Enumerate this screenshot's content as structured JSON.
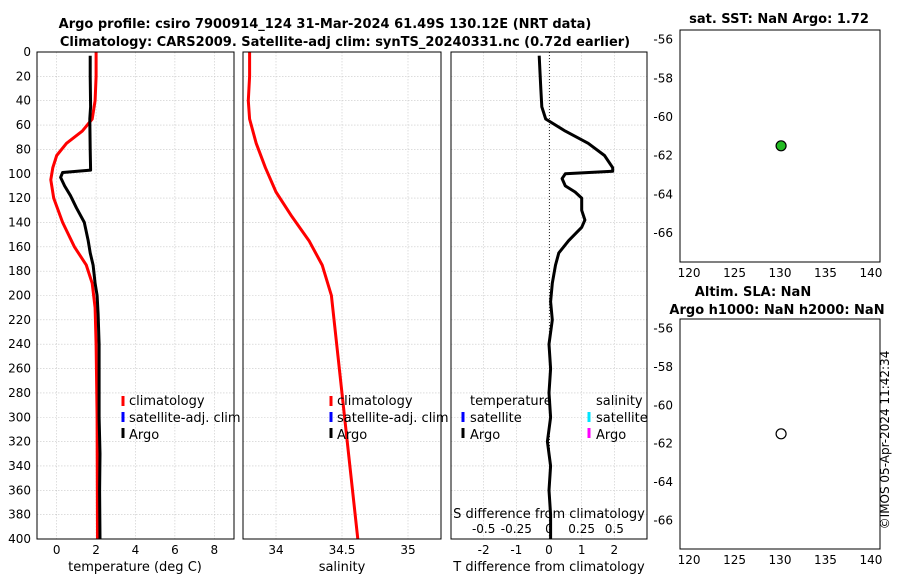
{
  "header": {
    "title_line1": "Argo profile: csiro 7900914_124 31-Mar-2024 61.49S 130.12E (NRT data)",
    "title_line2": "Climatology: CARS2009. Satellite-adj clim: synTS_20240331.nc (0.72d earlier)",
    "watermark": "©IMOS 05-Apr-2024 11:42:34"
  },
  "colors": {
    "climatology": "#ff0000",
    "satellite_adj_clim": "#0000ff",
    "argo": "#000000",
    "sal_satellite": "#00e5ff",
    "sal_argo": "#ff00ff",
    "sst_marker": "#22bb22"
  },
  "chart_data": [
    {
      "type": "line",
      "id": "temperature",
      "xlabel": "temperature (deg C)",
      "xlim": [
        -1,
        9
      ],
      "xticks": [
        0,
        2,
        4,
        6,
        8
      ],
      "xtick_labels": [
        "0",
        "2",
        "4",
        "6",
        "8"
      ],
      "ylim": [
        0,
        400
      ],
      "yticks": [
        0,
        20,
        40,
        60,
        80,
        100,
        120,
        140,
        160,
        180,
        200,
        220,
        240,
        260,
        280,
        300,
        320,
        340,
        360,
        380,
        400
      ],
      "ytick_labels": [
        "0",
        "20",
        "40",
        "60",
        "80",
        "100",
        "120",
        "140",
        "160",
        "180",
        "200",
        "220",
        "240",
        "260",
        "280",
        "300",
        "320",
        "340",
        "360",
        "380",
        "400"
      ],
      "y_reversed": true,
      "legend": [
        "climatology",
        "satellite-adj. clim",
        "Argo"
      ],
      "series": [
        {
          "name": "climatology",
          "color": "#ff0000",
          "points": [
            [
              2.0,
              0
            ],
            [
              2.0,
              20
            ],
            [
              1.95,
              40
            ],
            [
              1.8,
              55
            ],
            [
              1.3,
              65
            ],
            [
              0.5,
              75
            ],
            [
              0.0,
              85
            ],
            [
              -0.2,
              95
            ],
            [
              -0.3,
              105
            ],
            [
              -0.15,
              120
            ],
            [
              0.3,
              140
            ],
            [
              0.9,
              160
            ],
            [
              1.5,
              175
            ],
            [
              1.8,
              190
            ],
            [
              1.95,
              210
            ],
            [
              2.0,
              240
            ],
            [
              2.05,
              300
            ],
            [
              2.07,
              400
            ]
          ]
        },
        {
          "name": "Argo",
          "color": "#000000",
          "points": [
            [
              1.7,
              3
            ],
            [
              1.7,
              20
            ],
            [
              1.72,
              45
            ],
            [
              1.68,
              55
            ],
            [
              1.7,
              80
            ],
            [
              1.72,
              97
            ],
            [
              0.3,
              99
            ],
            [
              0.2,
              103
            ],
            [
              0.4,
              110
            ],
            [
              0.7,
              118
            ],
            [
              1.0,
              128
            ],
            [
              1.4,
              140
            ],
            [
              1.6,
              155
            ],
            [
              1.7,
              165
            ],
            [
              1.85,
              175
            ],
            [
              1.95,
              190
            ],
            [
              2.05,
              200
            ],
            [
              2.1,
              215
            ],
            [
              2.15,
              240
            ],
            [
              2.15,
              300
            ],
            [
              2.2,
              330
            ],
            [
              2.18,
              360
            ],
            [
              2.2,
              400
            ]
          ]
        }
      ]
    },
    {
      "type": "line",
      "id": "salinity",
      "xlabel": "salinity",
      "xlim": [
        33.75,
        35.25
      ],
      "xticks": [
        34,
        34.5,
        35
      ],
      "xtick_labels": [
        "34",
        "34.5",
        "35"
      ],
      "ylim": [
        0,
        400
      ],
      "y_reversed": true,
      "legend": [
        "climatology",
        "satellite-adj. clim",
        "Argo"
      ],
      "series": [
        {
          "name": "climatology",
          "color": "#ff0000",
          "points": [
            [
              33.8,
              0
            ],
            [
              33.8,
              20
            ],
            [
              33.79,
              40
            ],
            [
              33.8,
              55
            ],
            [
              33.85,
              75
            ],
            [
              33.92,
              95
            ],
            [
              34.0,
              115
            ],
            [
              34.12,
              135
            ],
            [
              34.25,
              155
            ],
            [
              34.35,
              175
            ],
            [
              34.42,
              200
            ],
            [
              34.47,
              250
            ],
            [
              34.52,
              300
            ],
            [
              34.57,
              350
            ],
            [
              34.62,
              400
            ]
          ]
        }
      ]
    },
    {
      "type": "line",
      "id": "difference",
      "xlabel": "T difference from climatology",
      "xlabel_top": "S difference from climatology",
      "xlim": [
        -3,
        3
      ],
      "xticks": [
        -2,
        -1,
        0,
        1,
        2
      ],
      "xtick_labels": [
        "-2",
        "-1",
        "0",
        "1",
        "2"
      ],
      "xticks_top": [
        -2,
        -1,
        0,
        1,
        2
      ],
      "xtick_labels_top": [
        "-0.5",
        "-0.25",
        "0",
        "0.25",
        "0.5"
      ],
      "ylim": [
        0,
        400
      ],
      "y_reversed": true,
      "legend_temperature": {
        "title": "temperature",
        "items": [
          "satellite",
          "Argo"
        ]
      },
      "legend_salinity": {
        "title": "salinity",
        "items": [
          "satellite",
          "Argo"
        ]
      },
      "series": [
        {
          "name": "Argo T difference",
          "color": "#000000",
          "points": [
            [
              -0.3,
              3
            ],
            [
              -0.28,
              15
            ],
            [
              -0.25,
              30
            ],
            [
              -0.22,
              45
            ],
            [
              -0.1,
              55
            ],
            [
              0.5,
              65
            ],
            [
              1.2,
              75
            ],
            [
              1.7,
              85
            ],
            [
              1.95,
              95
            ],
            [
              1.95,
              98
            ],
            [
              0.5,
              100
            ],
            [
              0.4,
              104
            ],
            [
              0.5,
              110
            ],
            [
              0.8,
              115
            ],
            [
              1.0,
              120
            ],
            [
              1.0,
              130
            ],
            [
              1.1,
              138
            ],
            [
              1.0,
              144
            ],
            [
              0.6,
              155
            ],
            [
              0.3,
              165
            ],
            [
              0.2,
              175
            ],
            [
              0.1,
              190
            ],
            [
              0.05,
              205
            ],
            [
              0.1,
              220
            ],
            [
              0.0,
              240
            ],
            [
              0.05,
              260
            ],
            [
              0.0,
              280
            ],
            [
              0.05,
              300
            ],
            [
              -0.05,
              320
            ],
            [
              0.05,
              340
            ],
            [
              0.0,
              360
            ],
            [
              0.05,
              380
            ],
            [
              0.05,
              400
            ]
          ]
        }
      ]
    },
    {
      "type": "scatter",
      "id": "sst_map",
      "title": "sat. SST: NaN Argo: 1.72",
      "xlim": [
        119,
        141
      ],
      "ylim": [
        -67.5,
        -55.5
      ],
      "xticks": [
        120,
        125,
        130,
        135,
        140
      ],
      "xtick_labels": [
        "120",
        "125",
        "130",
        "135",
        "140"
      ],
      "yticks": [
        -56,
        -58,
        -60,
        -62,
        -64,
        -66
      ],
      "ytick_labels": [
        "-56",
        "-58",
        "-60",
        "-62",
        "-64",
        "-66"
      ],
      "points": [
        {
          "x": 130.12,
          "y": -61.49,
          "filled": true
        }
      ]
    },
    {
      "type": "scatter",
      "id": "sla_map",
      "title": "Altim. SLA: NaN",
      "title_line2": "Argo h1000: NaN h2000: NaN",
      "xlim": [
        119,
        141
      ],
      "ylim": [
        -67.5,
        -55.5
      ],
      "xticks": [
        120,
        125,
        130,
        135,
        140
      ],
      "xtick_labels": [
        "120",
        "125",
        "130",
        "135",
        "140"
      ],
      "yticks": [
        -56,
        -58,
        -60,
        -62,
        -64,
        -66
      ],
      "ytick_labels": [
        "-56",
        "-58",
        "-60",
        "-62",
        "-64",
        "-66"
      ],
      "points": [
        {
          "x": 130.12,
          "y": -61.49,
          "filled": false
        }
      ]
    }
  ]
}
